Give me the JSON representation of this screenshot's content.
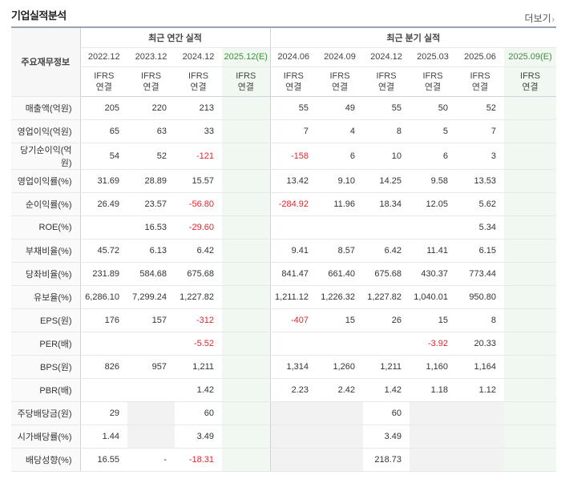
{
  "title": "기업실적분석",
  "more_label": "더보기",
  "header": {
    "row_label": "주요재무정보",
    "annual_group": "최근 연간 실적",
    "quarter_group": "최근 분기 실적",
    "annual_periods": [
      "2022.12",
      "2023.12",
      "2024.12",
      "2025.12(E)"
    ],
    "quarter_periods": [
      "2024.06",
      "2024.09",
      "2024.12",
      "2025.03",
      "2025.06",
      "2025.09(E)"
    ],
    "standard_line1": "IFRS",
    "standard_line2": "연결"
  },
  "rows": [
    {
      "label": "매출액(억원)",
      "values": [
        "205",
        "220",
        "213",
        "",
        "55",
        "49",
        "55",
        "50",
        "52",
        ""
      ]
    },
    {
      "label": "영업이익(억원)",
      "values": [
        "65",
        "63",
        "33",
        "",
        "7",
        "4",
        "8",
        "5",
        "7",
        ""
      ]
    },
    {
      "label": "당기순이익(억원)",
      "values": [
        "54",
        "52",
        "-121",
        "",
        "-158",
        "6",
        "10",
        "6",
        "3",
        ""
      ]
    },
    {
      "label": "영업이익률(%)",
      "values": [
        "31.69",
        "28.89",
        "15.57",
        "",
        "13.42",
        "9.10",
        "14.25",
        "9.58",
        "13.53",
        ""
      ]
    },
    {
      "label": "순이익률(%)",
      "values": [
        "26.49",
        "23.57",
        "-56.80",
        "",
        "-284.92",
        "11.96",
        "18.34",
        "12.05",
        "5.62",
        ""
      ]
    },
    {
      "label": "ROE(%)",
      "values": [
        "",
        "16.53",
        "-29.60",
        "",
        "",
        "",
        "",
        "",
        "5.34",
        ""
      ]
    },
    {
      "label": "부채비율(%)",
      "values": [
        "45.72",
        "6.13",
        "6.42",
        "",
        "9.41",
        "8.57",
        "6.42",
        "11.41",
        "6.15",
        ""
      ]
    },
    {
      "label": "당좌비율(%)",
      "values": [
        "231.89",
        "584.68",
        "675.68",
        "",
        "841.47",
        "661.40",
        "675.68",
        "430.37",
        "773.44",
        ""
      ]
    },
    {
      "label": "유보율(%)",
      "values": [
        "6,286.10",
        "7,299.24",
        "1,227.82",
        "",
        "1,211.12",
        "1,226.32",
        "1,227.82",
        "1,040.01",
        "950.80",
        ""
      ]
    },
    {
      "label": "EPS(원)",
      "values": [
        "176",
        "157",
        "-312",
        "",
        "-407",
        "15",
        "26",
        "15",
        "8",
        ""
      ]
    },
    {
      "label": "PER(배)",
      "values": [
        "",
        "",
        "-5.52",
        "",
        "",
        "",
        "",
        "-3.92",
        "20.33",
        ""
      ]
    },
    {
      "label": "BPS(원)",
      "values": [
        "826",
        "957",
        "1,211",
        "",
        "1,314",
        "1,260",
        "1,211",
        "1,160",
        "1,164",
        ""
      ]
    },
    {
      "label": "PBR(배)",
      "values": [
        "",
        "",
        "1.42",
        "",
        "2.23",
        "2.42",
        "1.42",
        "1.18",
        "1.12",
        ""
      ]
    },
    {
      "label": "주당배당금(원)",
      "values": [
        "29",
        "",
        "60",
        "",
        "",
        "",
        "60",
        "",
        "",
        ""
      ]
    },
    {
      "label": "시가배당률(%)",
      "values": [
        "1.44",
        "",
        "3.49",
        "",
        "",
        "",
        "3.49",
        "",
        "",
        ""
      ]
    },
    {
      "label": "배당성향(%)",
      "values": [
        "16.55",
        "-",
        "-18.31",
        "",
        "",
        "",
        "218.73",
        "",
        "",
        ""
      ]
    }
  ],
  "colors": {
    "negative": "#e0262e",
    "standard": "#e26a12",
    "estimate_bg": "#f1f8f1"
  }
}
